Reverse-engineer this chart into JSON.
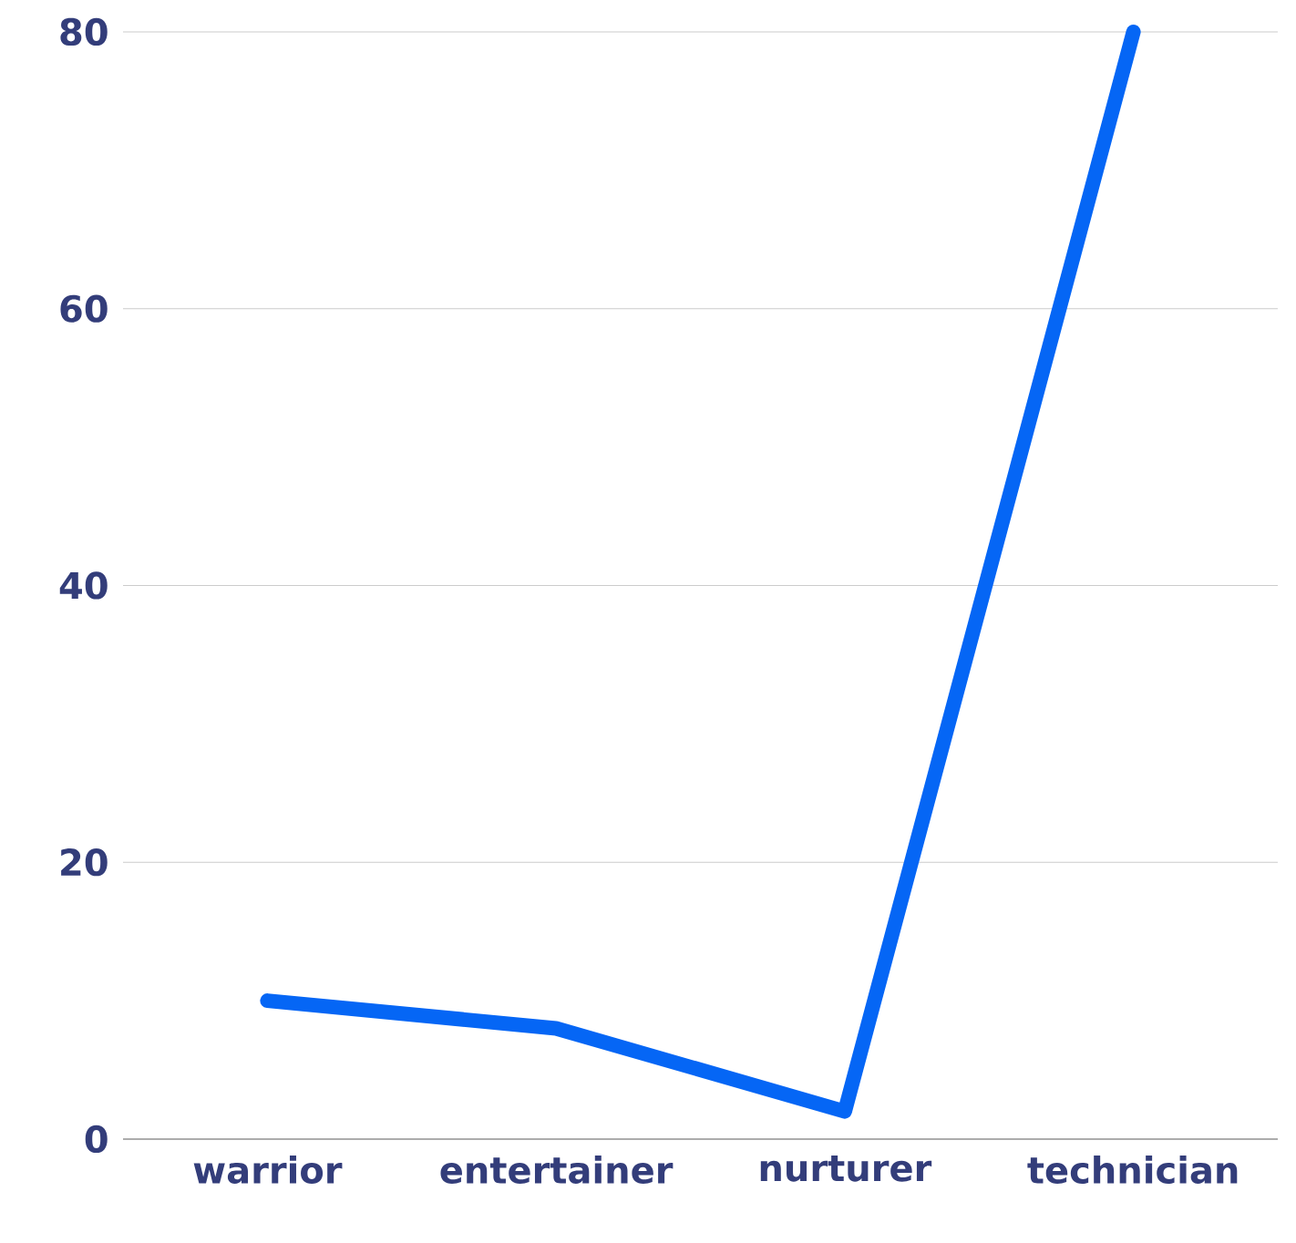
{
  "chart_data": {
    "type": "line",
    "categories": [
      "warrior",
      "entertainer",
      "nurturer",
      "technician"
    ],
    "values": [
      10,
      8,
      2,
      80
    ],
    "color": "#0566f5",
    "ylim": [
      0,
      80
    ],
    "yticks": [
      0,
      20,
      40,
      60,
      80
    ],
    "grid": "y"
  }
}
